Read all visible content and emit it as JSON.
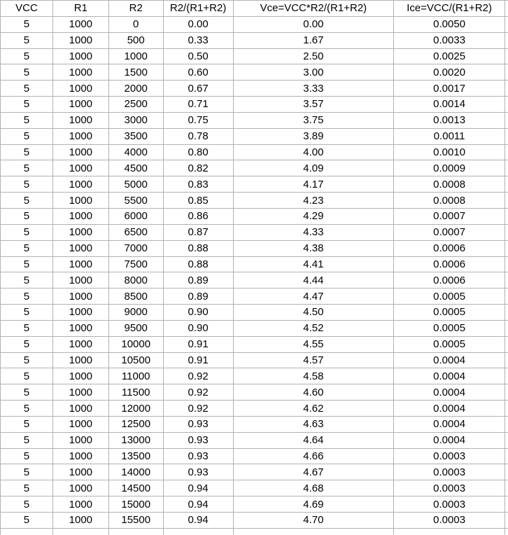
{
  "colors": {
    "gridline": "#b2b2b2",
    "text": "#000000",
    "background": "#ffffff"
  },
  "table": {
    "columns": [
      "VCC",
      "R1",
      "R2",
      "R2/(R1+R2)",
      "Vce=VCC*R2/(R1+R2)",
      "Ice=VCC/(R1+R2)"
    ],
    "rows": [
      [
        "5",
        "1000",
        "0",
        "0.00",
        "0.00",
        "0.0050"
      ],
      [
        "5",
        "1000",
        "500",
        "0.33",
        "1.67",
        "0.0033"
      ],
      [
        "5",
        "1000",
        "1000",
        "0.50",
        "2.50",
        "0.0025"
      ],
      [
        "5",
        "1000",
        "1500",
        "0.60",
        "3.00",
        "0.0020"
      ],
      [
        "5",
        "1000",
        "2000",
        "0.67",
        "3.33",
        "0.0017"
      ],
      [
        "5",
        "1000",
        "2500",
        "0.71",
        "3.57",
        "0.0014"
      ],
      [
        "5",
        "1000",
        "3000",
        "0.75",
        "3.75",
        "0.0013"
      ],
      [
        "5",
        "1000",
        "3500",
        "0.78",
        "3.89",
        "0.0011"
      ],
      [
        "5",
        "1000",
        "4000",
        "0.80",
        "4.00",
        "0.0010"
      ],
      [
        "5",
        "1000",
        "4500",
        "0.82",
        "4.09",
        "0.0009"
      ],
      [
        "5",
        "1000",
        "5000",
        "0.83",
        "4.17",
        "0.0008"
      ],
      [
        "5",
        "1000",
        "5500",
        "0.85",
        "4.23",
        "0.0008"
      ],
      [
        "5",
        "1000",
        "6000",
        "0.86",
        "4.29",
        "0.0007"
      ],
      [
        "5",
        "1000",
        "6500",
        "0.87",
        "4.33",
        "0.0007"
      ],
      [
        "5",
        "1000",
        "7000",
        "0.88",
        "4.38",
        "0.0006"
      ],
      [
        "5",
        "1000",
        "7500",
        "0.88",
        "4.41",
        "0.0006"
      ],
      [
        "5",
        "1000",
        "8000",
        "0.89",
        "4.44",
        "0.0006"
      ],
      [
        "5",
        "1000",
        "8500",
        "0.89",
        "4.47",
        "0.0005"
      ],
      [
        "5",
        "1000",
        "9000",
        "0.90",
        "4.50",
        "0.0005"
      ],
      [
        "5",
        "1000",
        "9500",
        "0.90",
        "4.52",
        "0.0005"
      ],
      [
        "5",
        "1000",
        "10000",
        "0.91",
        "4.55",
        "0.0005"
      ],
      [
        "5",
        "1000",
        "10500",
        "0.91",
        "4.57",
        "0.0004"
      ],
      [
        "5",
        "1000",
        "11000",
        "0.92",
        "4.58",
        "0.0004"
      ],
      [
        "5",
        "1000",
        "11500",
        "0.92",
        "4.60",
        "0.0004"
      ],
      [
        "5",
        "1000",
        "12000",
        "0.92",
        "4.62",
        "0.0004"
      ],
      [
        "5",
        "1000",
        "12500",
        "0.93",
        "4.63",
        "0.0004"
      ],
      [
        "5",
        "1000",
        "13000",
        "0.93",
        "4.64",
        "0.0004"
      ],
      [
        "5",
        "1000",
        "13500",
        "0.93",
        "4.66",
        "0.0003"
      ],
      [
        "5",
        "1000",
        "14000",
        "0.93",
        "4.67",
        "0.0003"
      ],
      [
        "5",
        "1000",
        "14500",
        "0.94",
        "4.68",
        "0.0003"
      ],
      [
        "5",
        "1000",
        "15000",
        "0.94",
        "4.69",
        "0.0003"
      ],
      [
        "5",
        "1000",
        "15500",
        "0.94",
        "4.70",
        "0.0003"
      ]
    ]
  }
}
